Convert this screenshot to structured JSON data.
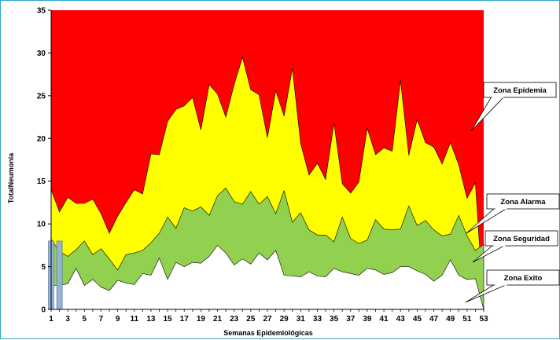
{
  "chart_data": {
    "type": "area",
    "xlabel": "Semanas Epidemiológicas",
    "ylabel": "TotalNeumonia",
    "xlim": [
      1,
      53
    ],
    "ylim": [
      0,
      35
    ],
    "y_ticks": [
      0,
      5,
      10,
      15,
      20,
      25,
      30,
      35
    ],
    "x_ticks": [
      1,
      3,
      5,
      7,
      9,
      11,
      13,
      15,
      17,
      19,
      21,
      23,
      25,
      27,
      29,
      31,
      33,
      35,
      37,
      39,
      41,
      43,
      45,
      47,
      49,
      51,
      53
    ],
    "weeks": [
      1,
      2,
      3,
      4,
      5,
      6,
      7,
      8,
      9,
      10,
      11,
      12,
      13,
      14,
      15,
      16,
      17,
      18,
      19,
      20,
      21,
      22,
      23,
      24,
      25,
      26,
      27,
      28,
      29,
      30,
      31,
      32,
      33,
      34,
      35,
      36,
      37,
      38,
      39,
      40,
      41,
      42,
      43,
      44,
      45,
      46,
      47,
      48,
      49,
      50,
      51,
      52,
      53
    ],
    "series": [
      {
        "name": "Zona Exito",
        "color": "#ffffff",
        "values": [
          2.8,
          2.8,
          3.0,
          4.8,
          2.8,
          3.5,
          2.6,
          2.2,
          3.4,
          3.1,
          2.9,
          4.2,
          4.0,
          6.0,
          3.5,
          5.5,
          5.0,
          5.5,
          5.4,
          6.2,
          7.5,
          6.6,
          5.2,
          5.9,
          5.3,
          6.6,
          5.8,
          6.9,
          4.0,
          3.9,
          3.8,
          4.4,
          3.9,
          3.8,
          4.8,
          4.4,
          4.2,
          4.0,
          4.8,
          4.6,
          4.1,
          4.3,
          5.0,
          5.0,
          4.5,
          4.1,
          3.3,
          4.0,
          5.8,
          4.0,
          3.5,
          3.6,
          0.0
        ]
      },
      {
        "name": "Zona Seguridad",
        "color": "#92d050",
        "values": [
          8.2,
          6.8,
          6.2,
          7.0,
          8.0,
          6.4,
          7.1,
          5.9,
          4.6,
          6.4,
          6.6,
          6.9,
          7.8,
          8.9,
          10.8,
          9.5,
          11.9,
          11.5,
          12.0,
          11.0,
          13.3,
          14.2,
          12.6,
          12.3,
          13.8,
          12.3,
          13.2,
          11.2,
          13.9,
          10.2,
          11.3,
          9.3,
          8.7,
          8.7,
          7.9,
          10.8,
          8.3,
          7.7,
          8.1,
          10.5,
          9.4,
          9.3,
          9.4,
          12.1,
          9.8,
          10.4,
          9.3,
          8.6,
          8.8,
          11.0,
          8.6,
          6.9,
          7.6
        ]
      },
      {
        "name": "Zona Alarma",
        "color": "#ffff00",
        "values": [
          14.0,
          11.4,
          13.1,
          12.4,
          12.4,
          12.9,
          11.2,
          8.9,
          10.9,
          12.5,
          14.0,
          13.5,
          18.2,
          18.1,
          22.0,
          23.4,
          23.8,
          24.8,
          21.0,
          26.3,
          25.2,
          22.5,
          26.3,
          29.5,
          25.7,
          25.1,
          20.1,
          25.6,
          22.6,
          28.2,
          19.4,
          15.7,
          17.1,
          15.2,
          21.8,
          14.7,
          13.6,
          14.9,
          21.2,
          18.1,
          18.9,
          18.5,
          26.8,
          18.0,
          22.2,
          19.5,
          19.0,
          17.0,
          19.5,
          16.9,
          13.0,
          14.8,
          0.0
        ]
      },
      {
        "name": "Zona Epidemia",
        "color": "#ff0000",
        "values": [
          35,
          35,
          35,
          35,
          35,
          35,
          35,
          35,
          35,
          35,
          35,
          35,
          35,
          35,
          35,
          35,
          35,
          35,
          35,
          35,
          35,
          35,
          35,
          35,
          35,
          35,
          35,
          35,
          35,
          35,
          35,
          35,
          35,
          35,
          35,
          35,
          35,
          35,
          35,
          35,
          35,
          35,
          35,
          35,
          35,
          35,
          35,
          35,
          35,
          35,
          35,
          35,
          35
        ]
      },
      {
        "name": "TotalNeumonia",
        "type": "bar",
        "color": "#95b3d7",
        "x": [
          1,
          2
        ],
        "values": [
          8.0,
          8.0
        ]
      }
    ],
    "grid": false,
    "legend": "callouts-right"
  },
  "callouts": [
    {
      "label": "Zona Epidemia"
    },
    {
      "label": "Zona Alarma"
    },
    {
      "label": "Zona Seguridad"
    },
    {
      "label": "Zona Exito"
    }
  ]
}
